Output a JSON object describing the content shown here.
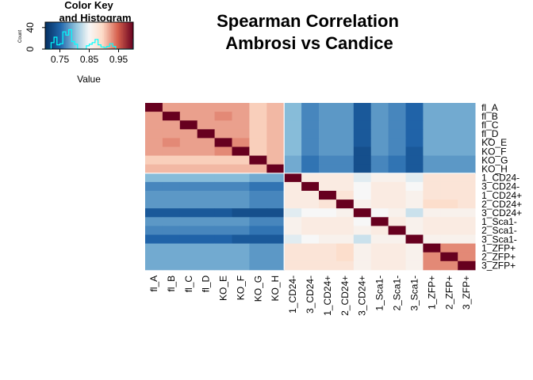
{
  "chart_data": {
    "type": "heatmap",
    "title_line1": "Spearman Correlation",
    "title_line2": "Ambrosi vs Candice",
    "labels": [
      "fl_A",
      "fl_B",
      "fl_C",
      "fl_D",
      "KO_E",
      "KO_F",
      "KO_G",
      "KO_H",
      "1_CD24-",
      "3_CD24-",
      "1_CD24+",
      "2_CD24+",
      "3_CD24+",
      "1_Sca1-",
      "2_Sca1-",
      "3_Sca1-",
      "1_ZFP+",
      "2_ZFP+",
      "3_ZFP+"
    ],
    "values": [
      [
        1.0,
        0.92,
        0.92,
        0.92,
        0.92,
        0.92,
        0.9,
        0.91,
        0.8,
        0.77,
        0.78,
        0.78,
        0.74,
        0.78,
        0.77,
        0.75,
        0.79,
        0.79,
        0.79
      ],
      [
        0.92,
        1.0,
        0.92,
        0.92,
        0.93,
        0.92,
        0.9,
        0.91,
        0.8,
        0.77,
        0.78,
        0.78,
        0.74,
        0.78,
        0.77,
        0.75,
        0.79,
        0.79,
        0.79
      ],
      [
        0.92,
        0.92,
        1.0,
        0.92,
        0.92,
        0.92,
        0.9,
        0.91,
        0.8,
        0.77,
        0.78,
        0.78,
        0.74,
        0.78,
        0.77,
        0.75,
        0.79,
        0.79,
        0.79
      ],
      [
        0.92,
        0.92,
        0.92,
        1.0,
        0.92,
        0.92,
        0.9,
        0.91,
        0.8,
        0.77,
        0.78,
        0.78,
        0.74,
        0.78,
        0.77,
        0.75,
        0.79,
        0.79,
        0.79
      ],
      [
        0.92,
        0.93,
        0.92,
        0.92,
        1.0,
        0.93,
        0.9,
        0.91,
        0.8,
        0.77,
        0.78,
        0.78,
        0.74,
        0.78,
        0.77,
        0.75,
        0.79,
        0.79,
        0.79
      ],
      [
        0.92,
        0.92,
        0.92,
        0.92,
        0.93,
        1.0,
        0.9,
        0.91,
        0.8,
        0.77,
        0.78,
        0.78,
        0.73,
        0.78,
        0.77,
        0.74,
        0.79,
        0.79,
        0.79
      ],
      [
        0.9,
        0.9,
        0.9,
        0.9,
        0.9,
        0.9,
        1.0,
        0.91,
        0.79,
        0.76,
        0.77,
        0.77,
        0.73,
        0.77,
        0.76,
        0.74,
        0.78,
        0.78,
        0.78
      ],
      [
        0.91,
        0.91,
        0.91,
        0.91,
        0.91,
        0.91,
        0.91,
        1.0,
        0.79,
        0.76,
        0.77,
        0.77,
        0.73,
        0.77,
        0.76,
        0.74,
        0.78,
        0.78,
        0.78
      ],
      [
        0.8,
        0.8,
        0.8,
        0.8,
        0.8,
        0.8,
        0.79,
        0.79,
        1.0,
        0.87,
        0.87,
        0.87,
        0.84,
        0.86,
        0.86,
        0.84,
        0.88,
        0.88,
        0.88
      ],
      [
        0.77,
        0.77,
        0.77,
        0.77,
        0.77,
        0.77,
        0.76,
        0.76,
        0.87,
        1.0,
        0.87,
        0.87,
        0.85,
        0.87,
        0.87,
        0.85,
        0.88,
        0.88,
        0.88
      ],
      [
        0.78,
        0.78,
        0.78,
        0.78,
        0.78,
        0.78,
        0.77,
        0.77,
        0.87,
        0.87,
        1.0,
        0.88,
        0.85,
        0.87,
        0.87,
        0.86,
        0.88,
        0.88,
        0.88
      ],
      [
        0.78,
        0.78,
        0.78,
        0.78,
        0.78,
        0.78,
        0.77,
        0.77,
        0.87,
        0.87,
        0.88,
        1.0,
        0.86,
        0.87,
        0.87,
        0.86,
        0.89,
        0.89,
        0.88
      ],
      [
        0.74,
        0.74,
        0.74,
        0.74,
        0.74,
        0.73,
        0.73,
        0.73,
        0.84,
        0.85,
        0.85,
        0.86,
        1.0,
        0.85,
        0.86,
        0.83,
        0.86,
        0.86,
        0.86
      ],
      [
        0.78,
        0.78,
        0.78,
        0.78,
        0.78,
        0.78,
        0.77,
        0.77,
        0.86,
        0.87,
        0.87,
        0.87,
        0.85,
        1.0,
        0.87,
        0.86,
        0.87,
        0.87,
        0.87
      ],
      [
        0.77,
        0.77,
        0.77,
        0.77,
        0.77,
        0.77,
        0.76,
        0.76,
        0.86,
        0.87,
        0.87,
        0.87,
        0.86,
        0.87,
        1.0,
        0.86,
        0.87,
        0.87,
        0.87
      ],
      [
        0.75,
        0.75,
        0.75,
        0.75,
        0.75,
        0.74,
        0.74,
        0.74,
        0.84,
        0.85,
        0.86,
        0.86,
        0.83,
        0.86,
        0.86,
        1.0,
        0.86,
        0.86,
        0.86
      ],
      [
        0.79,
        0.79,
        0.79,
        0.79,
        0.79,
        0.79,
        0.78,
        0.78,
        0.88,
        0.88,
        0.88,
        0.89,
        0.86,
        0.87,
        0.87,
        0.86,
        1.0,
        0.93,
        0.93
      ],
      [
        0.79,
        0.79,
        0.79,
        0.79,
        0.79,
        0.79,
        0.78,
        0.78,
        0.88,
        0.88,
        0.88,
        0.89,
        0.86,
        0.87,
        0.87,
        0.86,
        0.93,
        1.0,
        0.93
      ],
      [
        0.79,
        0.79,
        0.79,
        0.79,
        0.79,
        0.79,
        0.78,
        0.78,
        0.88,
        0.88,
        0.88,
        0.88,
        0.86,
        0.87,
        0.87,
        0.86,
        0.93,
        0.93,
        1.0
      ]
    ],
    "color_scale": {
      "min": 0.7,
      "mid": 0.85,
      "max": 1.0,
      "low_color": "#053061",
      "mid_color": "#f7f7f7",
      "high_color": "#67001f"
    },
    "color_key": {
      "title_line1": "Color Key",
      "title_line2": "and Histogram",
      "xlabel": "Value",
      "ylabel": "Count",
      "x_ticks": [
        "0.75",
        "0.85",
        "0.95"
      ],
      "x_tick_values": [
        0.75,
        0.85,
        0.95
      ],
      "y_ticks": [
        "0",
        "40"
      ],
      "y_tick_values": [
        0,
        40
      ],
      "ylim": [
        0,
        50
      ],
      "histogram_color": "#00ffff",
      "histogram": [
        {
          "x": 0.7,
          "count": 0
        },
        {
          "x": 0.72,
          "count": 12
        },
        {
          "x": 0.73,
          "count": 22
        },
        {
          "x": 0.74,
          "count": 8
        },
        {
          "x": 0.75,
          "count": 10
        },
        {
          "x": 0.76,
          "count": 32
        },
        {
          "x": 0.77,
          "count": 26
        },
        {
          "x": 0.78,
          "count": 36
        },
        {
          "x": 0.79,
          "count": 14
        },
        {
          "x": 0.8,
          "count": 9
        },
        {
          "x": 0.81,
          "count": 0
        },
        {
          "x": 0.83,
          "count": 0
        },
        {
          "x": 0.84,
          "count": 6
        },
        {
          "x": 0.85,
          "count": 9
        },
        {
          "x": 0.86,
          "count": 12
        },
        {
          "x": 0.87,
          "count": 18
        },
        {
          "x": 0.88,
          "count": 8
        },
        {
          "x": 0.89,
          "count": 4
        },
        {
          "x": 0.9,
          "count": 3
        },
        {
          "x": 0.91,
          "count": 5
        },
        {
          "x": 0.92,
          "count": 10
        },
        {
          "x": 0.93,
          "count": 5
        },
        {
          "x": 0.94,
          "count": 0
        },
        {
          "x": 0.99,
          "count": 0
        },
        {
          "x": 1.0,
          "count": 19
        }
      ]
    },
    "separators": {
      "after_row": 8,
      "after_col": 8
    }
  }
}
